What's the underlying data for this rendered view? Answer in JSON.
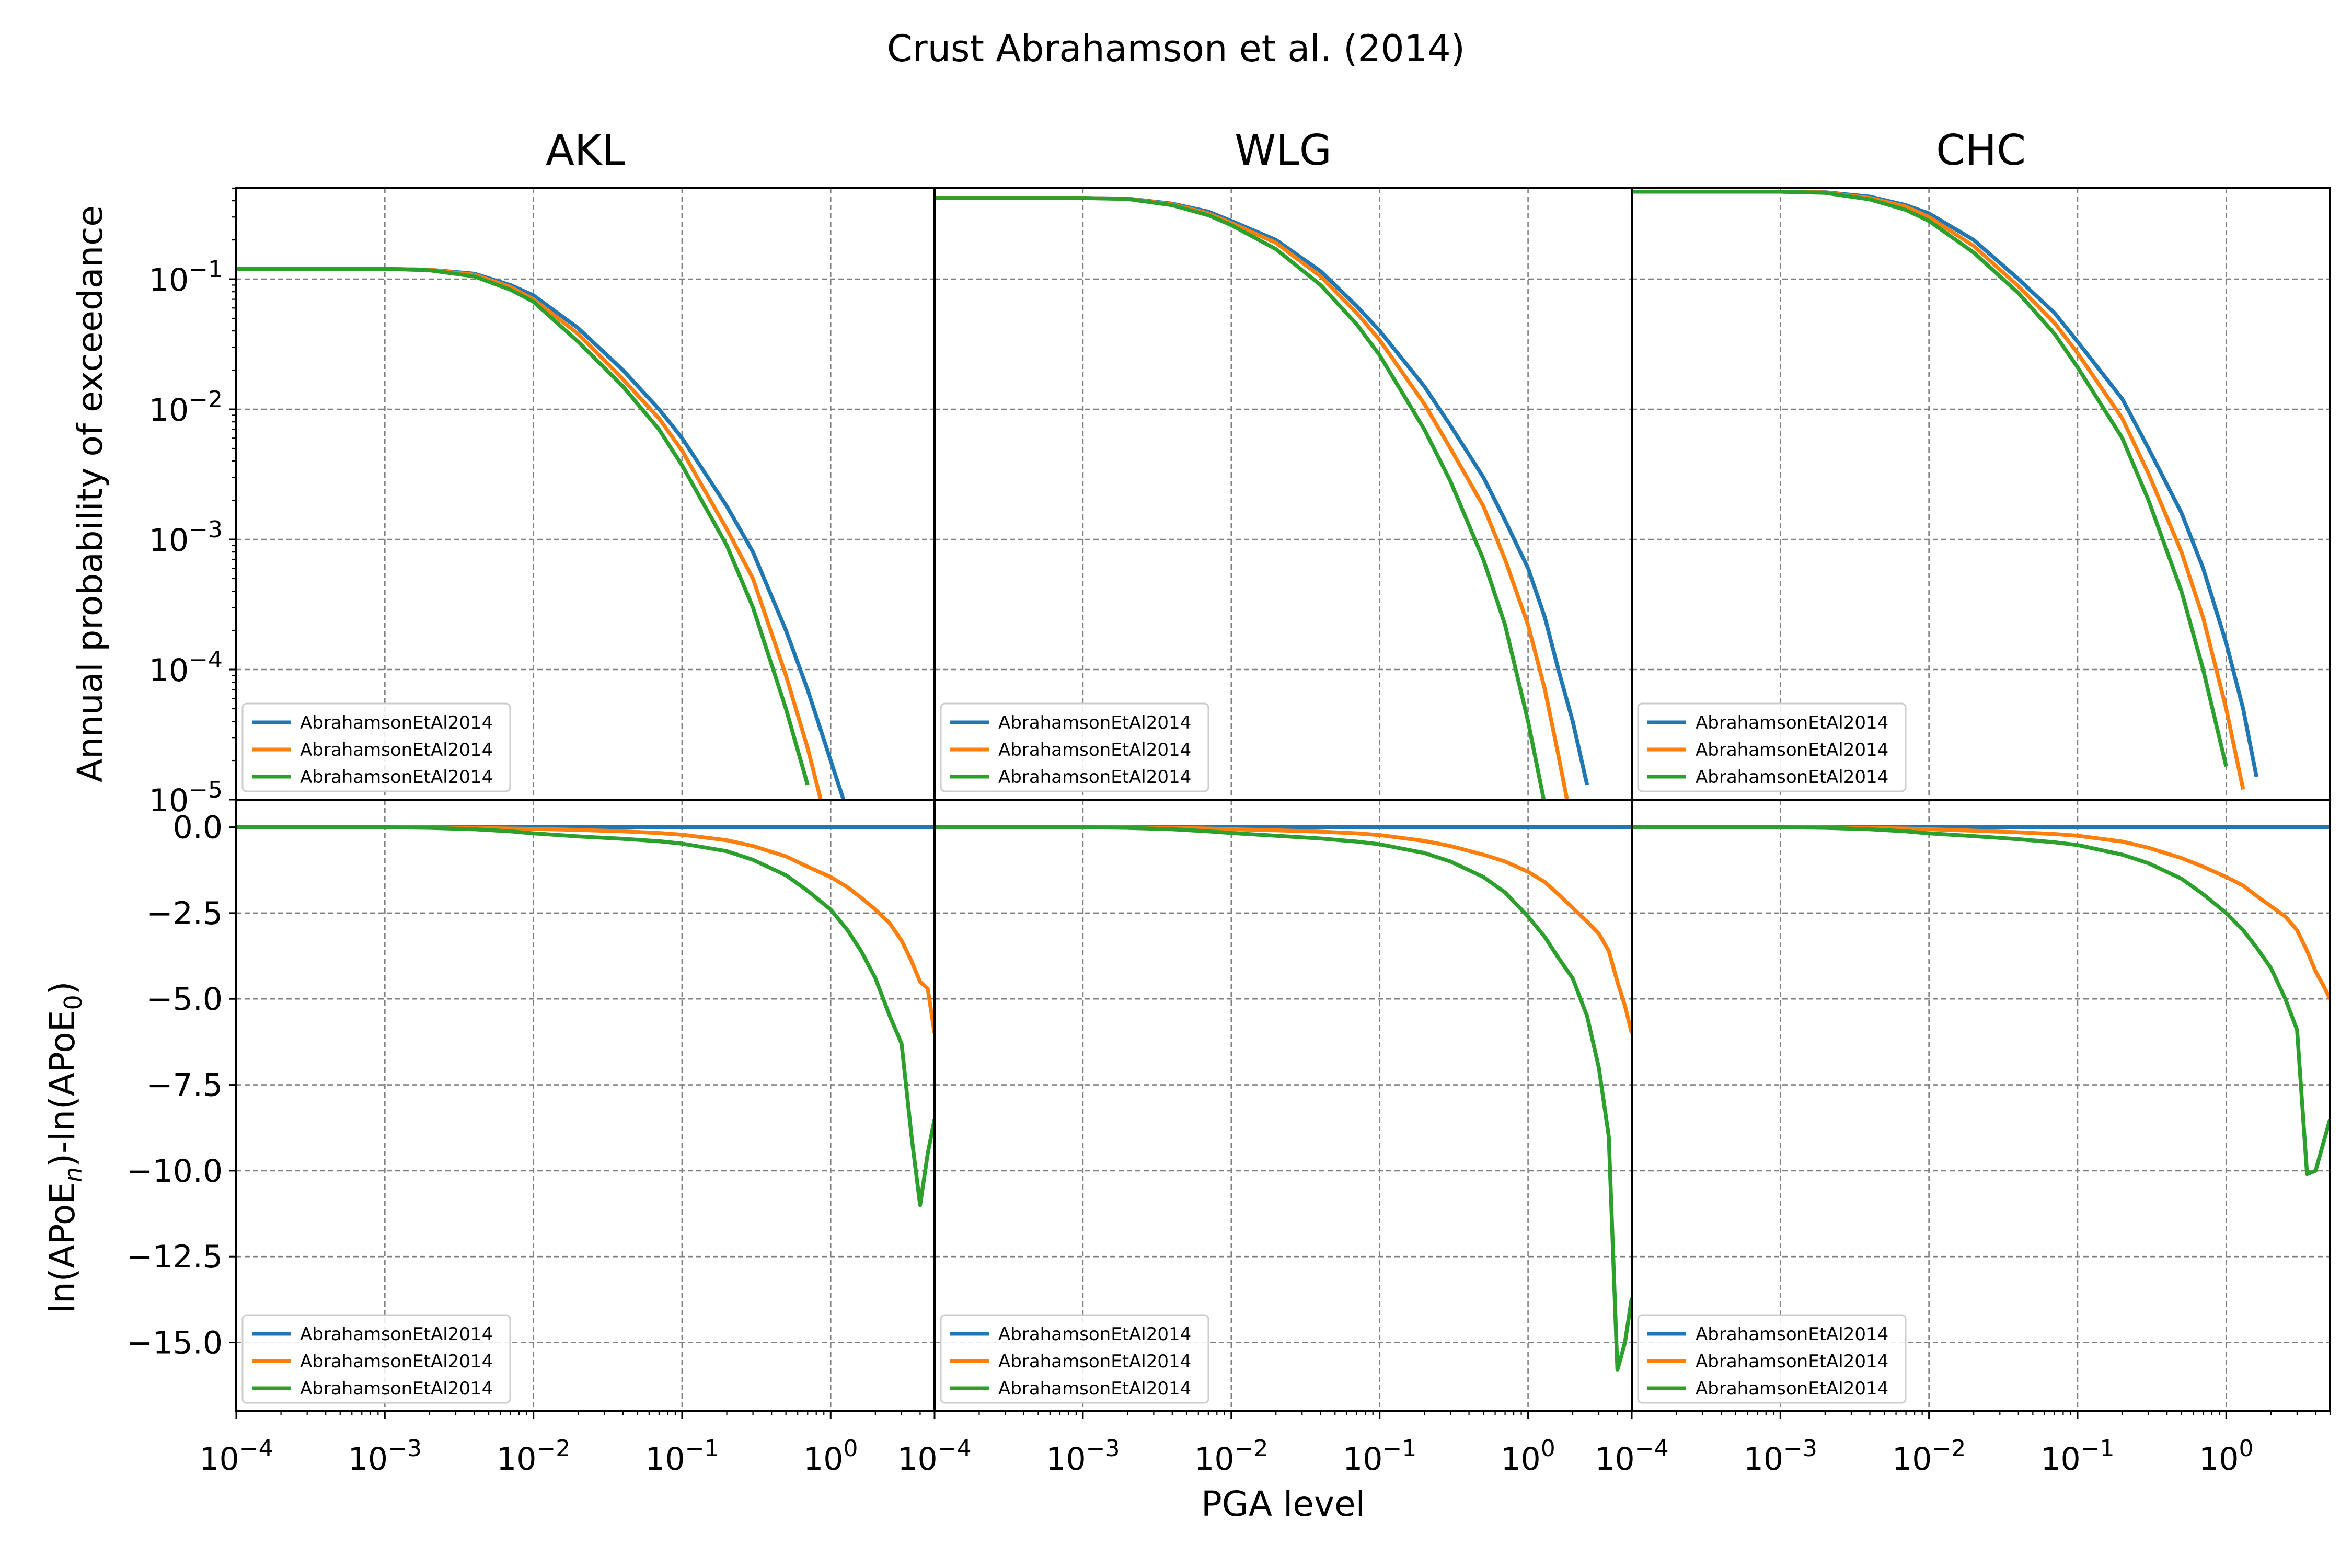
{
  "figure": {
    "suptitle": "Crust Abrahamson et al. (2014)",
    "xlabel": "PGA level",
    "ylabel_top": "Annual probability of exceedance",
    "ylabel_bottom_parts": [
      "ln",
      "(APoE",
      "n",
      ")-ln",
      "(APoE",
      "0",
      ")"
    ],
    "colors": {
      "blue": "#1f77b4",
      "orange": "#ff7f0e",
      "green": "#2ca02c",
      "grid": "#808080"
    }
  },
  "chart_data": {
    "type": "line",
    "x_scale": "log",
    "xlim": [
      0.0001,
      5.0
    ],
    "x_tick_labels": [
      "10^-4",
      "10^-3",
      "10^-2",
      "10^-1",
      "10^0"
    ],
    "top_ylim": [
      1e-05,
      0.5
    ],
    "top_y_scale": "log",
    "top_y_tick_labels": [
      "10^-5",
      "10^-4",
      "10^-3",
      "10^-2",
      "10^-1"
    ],
    "bottom_ylim": [
      -17.0,
      0.8
    ],
    "bottom_y_ticks": [
      "0.0",
      "−2.5",
      "−5.0",
      "−7.5",
      "−10.0",
      "−12.5",
      "−15.0"
    ],
    "grid": true,
    "legend_placement": "lower-left",
    "x": [
      0.0001,
      0.0002,
      0.0004,
      0.0007,
      0.001,
      0.002,
      0.004,
      0.007,
      0.01,
      0.02,
      0.04,
      0.07,
      0.1,
      0.2,
      0.3,
      0.5,
      0.7,
      1.0,
      1.3,
      1.6,
      2.0,
      2.5,
      3.0,
      3.5,
      4.0,
      4.5,
      5.0
    ],
    "panels": [
      {
        "title": "AKL",
        "apoe_series": [
          {
            "name": "AbrahamsonEtAl2014",
            "color": "#1f77b4",
            "values": [
              0.12,
              0.12,
              0.12,
              0.12,
              0.12,
              0.118,
              0.11,
              0.09,
              0.075,
              0.042,
              0.02,
              0.01,
              0.006,
              0.0018,
              0.0008,
              0.0002,
              7e-05,
              2e-05,
              8e-06,
              null,
              null,
              null,
              null,
              null,
              null,
              null,
              null
            ]
          },
          {
            "name": "AbrahamsonEtAl2014",
            "color": "#ff7f0e",
            "values": [
              0.12,
              0.12,
              0.12,
              0.12,
              0.12,
              0.118,
              0.108,
              0.087,
              0.07,
              0.038,
              0.017,
              0.0085,
              0.0048,
              0.0012,
              0.0005,
              9e-05,
              2.5e-05,
              5e-06,
              null,
              null,
              null,
              null,
              null,
              null,
              null,
              null,
              null
            ]
          },
          {
            "name": "AbrahamsonEtAl2014",
            "color": "#2ca02c",
            "values": [
              0.12,
              0.12,
              0.12,
              0.12,
              0.12,
              0.117,
              0.105,
              0.083,
              0.067,
              0.033,
              0.015,
              0.007,
              0.0037,
              0.0009,
              0.0003,
              5e-05,
              1.3e-05,
              null,
              null,
              null,
              null,
              null,
              null,
              null,
              null,
              null,
              null
            ]
          }
        ],
        "ln_ratio_series": [
          {
            "name": "AbrahamsonEtAl2014",
            "color": "#1f77b4",
            "values": [
              0,
              0,
              0,
              0,
              0,
              0,
              0,
              0,
              0,
              0,
              0,
              0,
              0,
              0,
              0,
              0,
              0,
              0,
              0,
              0,
              0,
              0,
              0,
              0,
              0,
              0,
              0
            ]
          },
          {
            "name": "AbrahamsonEtAl2014",
            "color": "#ff7f0e",
            "values": [
              0,
              0,
              0,
              0,
              0,
              -0.01,
              -0.02,
              -0.04,
              -0.05,
              -0.08,
              -0.12,
              -0.17,
              -0.22,
              -0.38,
              -0.55,
              -0.85,
              -1.15,
              -1.45,
              -1.75,
              -2.05,
              -2.4,
              -2.8,
              -3.3,
              -3.9,
              -4.5,
              -4.7,
              -6.0
            ]
          },
          {
            "name": "AbrahamsonEtAl2014",
            "color": "#2ca02c",
            "values": [
              0,
              0,
              0,
              0,
              0,
              -0.02,
              -0.06,
              -0.12,
              -0.18,
              -0.27,
              -0.34,
              -0.41,
              -0.48,
              -0.7,
              -0.95,
              -1.4,
              -1.85,
              -2.4,
              -3.0,
              -3.6,
              -4.4,
              -5.5,
              -6.3,
              -9.0,
              -11.0,
              -9.5,
              -8.5
            ]
          }
        ]
      },
      {
        "title": "WLG",
        "apoe_series": [
          {
            "name": "AbrahamsonEtAl2014",
            "color": "#1f77b4",
            "values": [
              0.42,
              0.42,
              0.42,
              0.42,
              0.42,
              0.415,
              0.38,
              0.33,
              0.28,
              0.2,
              0.115,
              0.062,
              0.04,
              0.015,
              0.0075,
              0.003,
              0.0014,
              0.0006,
              0.00025,
              0.0001,
              4e-05,
              1.3e-05,
              null,
              null,
              null,
              null,
              null
            ]
          },
          {
            "name": "AbrahamsonEtAl2014",
            "color": "#ff7f0e",
            "values": [
              0.42,
              0.42,
              0.42,
              0.42,
              0.42,
              0.414,
              0.375,
              0.32,
              0.27,
              0.19,
              0.105,
              0.055,
              0.034,
              0.011,
              0.005,
              0.0018,
              0.0007,
              0.00022,
              7e-05,
              2.2e-05,
              6e-06,
              null,
              null,
              null,
              null,
              null,
              null
            ]
          },
          {
            "name": "AbrahamsonEtAl2014",
            "color": "#2ca02c",
            "values": [
              0.42,
              0.42,
              0.42,
              0.42,
              0.42,
              0.413,
              0.37,
              0.31,
              0.26,
              0.17,
              0.09,
              0.045,
              0.026,
              0.007,
              0.0028,
              0.0007,
              0.00022,
              4e-05,
              9e-06,
              null,
              null,
              null,
              null,
              null,
              null,
              null,
              null
            ]
          }
        ],
        "ln_ratio_series": [
          {
            "name": "AbrahamsonEtAl2014",
            "color": "#1f77b4",
            "values": [
              0,
              0,
              0,
              0,
              0,
              0,
              0,
              0,
              0,
              0,
              0,
              0,
              0,
              0,
              0,
              0,
              0,
              0,
              0,
              0,
              0,
              0,
              0,
              0,
              0,
              0,
              0
            ]
          },
          {
            "name": "AbrahamsonEtAl2014",
            "color": "#ff7f0e",
            "values": [
              0,
              0,
              0,
              0,
              0,
              -0.01,
              -0.02,
              -0.04,
              -0.06,
              -0.09,
              -0.13,
              -0.18,
              -0.23,
              -0.4,
              -0.55,
              -0.8,
              -1.0,
              -1.3,
              -1.6,
              -1.95,
              -2.35,
              -2.75,
              -3.1,
              -3.6,
              -4.5,
              -5.2,
              -6.0
            ]
          },
          {
            "name": "AbrahamsonEtAl2014",
            "color": "#2ca02c",
            "values": [
              0,
              0,
              0,
              0,
              0,
              -0.02,
              -0.06,
              -0.12,
              -0.17,
              -0.25,
              -0.33,
              -0.42,
              -0.5,
              -0.75,
              -1.0,
              -1.45,
              -1.9,
              -2.6,
              -3.2,
              -3.8,
              -4.4,
              -5.5,
              -7.0,
              -9.0,
              -15.8,
              -15.0,
              -13.7
            ]
          }
        ]
      },
      {
        "title": "CHC",
        "apoe_series": [
          {
            "name": "AbrahamsonEtAl2014",
            "color": "#1f77b4",
            "values": [
              0.47,
              0.47,
              0.47,
              0.47,
              0.47,
              0.465,
              0.43,
              0.37,
              0.32,
              0.2,
              0.1,
              0.055,
              0.033,
              0.012,
              0.005,
              0.0016,
              0.0006,
              0.00016,
              5e-05,
              1.5e-05,
              null,
              null,
              null,
              null,
              null,
              null,
              null
            ]
          },
          {
            "name": "AbrahamsonEtAl2014",
            "color": "#ff7f0e",
            "values": [
              0.47,
              0.47,
              0.47,
              0.47,
              0.47,
              0.463,
              0.42,
              0.36,
              0.3,
              0.18,
              0.088,
              0.046,
              0.027,
              0.0085,
              0.0032,
              0.0008,
              0.00025,
              5e-05,
              1.2e-05,
              null,
              null,
              null,
              null,
              null,
              null,
              null,
              null
            ]
          },
          {
            "name": "AbrahamsonEtAl2014",
            "color": "#2ca02c",
            "values": [
              0.47,
              0.47,
              0.47,
              0.47,
              0.47,
              0.46,
              0.41,
              0.34,
              0.28,
              0.16,
              0.078,
              0.038,
              0.021,
              0.006,
              0.002,
              0.0004,
              0.0001,
              1.8e-05,
              null,
              null,
              null,
              null,
              null,
              null,
              null,
              null,
              null
            ]
          }
        ],
        "ln_ratio_series": [
          {
            "name": "AbrahamsonEtAl2014",
            "color": "#1f77b4",
            "values": [
              0,
              0,
              0,
              0,
              0,
              0,
              0,
              0,
              0,
              0,
              0,
              0,
              0,
              0,
              0,
              0,
              0,
              0,
              0,
              0,
              0,
              0,
              0,
              0,
              0,
              0,
              0
            ]
          },
          {
            "name": "AbrahamsonEtAl2014",
            "color": "#ff7f0e",
            "values": [
              0,
              0,
              0,
              0,
              0,
              -0.01,
              -0.02,
              -0.04,
              -0.06,
              -0.1,
              -0.15,
              -0.2,
              -0.25,
              -0.42,
              -0.6,
              -0.9,
              -1.15,
              -1.45,
              -1.7,
              -2.0,
              -2.3,
              -2.6,
              -3.0,
              -3.6,
              -4.2,
              -4.6,
              -5.0
            ]
          },
          {
            "name": "AbrahamsonEtAl2014",
            "color": "#2ca02c",
            "values": [
              0,
              0,
              0,
              0,
              0,
              -0.02,
              -0.06,
              -0.12,
              -0.18,
              -0.26,
              -0.35,
              -0.44,
              -0.52,
              -0.8,
              -1.05,
              -1.5,
              -1.95,
              -2.5,
              -3.0,
              -3.5,
              -4.1,
              -5.0,
              -5.9,
              -10.1,
              -10.0,
              -9.2,
              -8.5
            ]
          }
        ]
      }
    ]
  }
}
